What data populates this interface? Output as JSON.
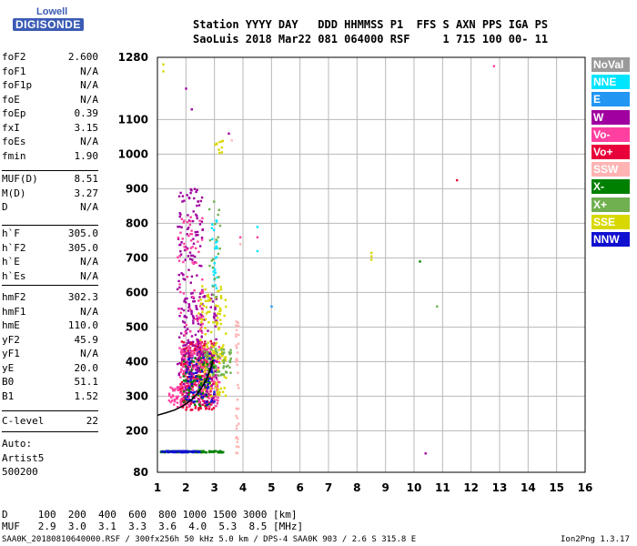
{
  "logo": {
    "line1": "Lowell",
    "line2": "DIGISONDE"
  },
  "header": {
    "line1": "Station YYYY DAY   DDD HHMMSS P1  FFS S AXN PPS IGA PS",
    "line2": "SaoLuis 2018 Mar22 081 064000 RSF     1 715 100 00- 11"
  },
  "parameters": {
    "group1": [
      {
        "name": "foF2",
        "value": "2.600"
      },
      {
        "name": "foF1",
        "value": "N/A"
      },
      {
        "name": "foF1p",
        "value": "N/A"
      },
      {
        "name": "foE",
        "value": "N/A"
      },
      {
        "name": "foEp",
        "value": "0.39"
      },
      {
        "name": "fxI",
        "value": "3.15"
      },
      {
        "name": "foEs",
        "value": "N/A"
      },
      {
        "name": "fmin",
        "value": "1.90"
      }
    ],
    "group2": [
      {
        "name": "MUF(D)",
        "value": "8.51"
      },
      {
        "name": "M(D)",
        "value": "3.27"
      },
      {
        "name": "D",
        "value": "N/A"
      }
    ],
    "group3": [
      {
        "name": "h`F",
        "value": "305.0"
      },
      {
        "name": "h`F2",
        "value": "305.0"
      },
      {
        "name": "h`E",
        "value": "N/A"
      },
      {
        "name": "h`Es",
        "value": "N/A"
      }
    ],
    "group4": [
      {
        "name": "hmF2",
        "value": "302.3"
      },
      {
        "name": "hmF1",
        "value": "N/A"
      },
      {
        "name": "hmE",
        "value": "110.0"
      },
      {
        "name": "yF2",
        "value": "45.9"
      },
      {
        "name": "yF1",
        "value": "N/A"
      },
      {
        "name": "yE",
        "value": "20.0"
      },
      {
        "name": "B0",
        "value": "51.1"
      },
      {
        "name": "B1",
        "value": "1.52"
      }
    ],
    "clevel": {
      "name": "C-level",
      "value": "22"
    },
    "auto": [
      "Auto:",
      "Artist5",
      "500200"
    ]
  },
  "legend": [
    {
      "label": "NoVal",
      "color": "#9a9a9a"
    },
    {
      "label": "NNE",
      "color": "#00e5ff"
    },
    {
      "label": "E",
      "color": "#2196f3"
    },
    {
      "label": "W",
      "color": "#a000a0"
    },
    {
      "label": "Vo-",
      "color": "#ff40a0"
    },
    {
      "label": "Vo+",
      "color": "#e8003a"
    },
    {
      "label": "SSW",
      "color": "#ffb3b3"
    },
    {
      "label": "X-",
      "color": "#008000"
    },
    {
      "label": "X+",
      "color": "#70b050"
    },
    {
      "label": "SSE",
      "color": "#d8d800"
    },
    {
      "label": "NNW",
      "color": "#1010d0"
    }
  ],
  "muf_table": {
    "row1": "D     100  200  400  600  800 1000 1500 3000 [km]",
    "row2": "MUF   2.9  3.0  3.1  3.3  3.6  4.0  5.3  8.5 [MHz]"
  },
  "footer": {
    "left": "SAA0K_20180810640000.RSF / 300fx256h 50 kHz 5.0 km / DPS-4 SAA0K 903 / 2.6 S 315.8 E",
    "right": "Ion2Png 1.3.17"
  },
  "chart_data": {
    "type": "scatter",
    "x_ticks": [
      1,
      2,
      3,
      4,
      5,
      6,
      7,
      8,
      9,
      10,
      11,
      12,
      13,
      14,
      15,
      16
    ],
    "y_ticks": [
      80,
      200,
      300,
      400,
      500,
      600,
      700,
      800,
      900,
      1000,
      1100,
      1280
    ],
    "xlim": [
      1,
      16
    ],
    "ylim": [
      80,
      1280
    ],
    "grid": true,
    "legend_position": "right",
    "trace_profile": [
      [
        1.0,
        245
      ],
      [
        1.3,
        252
      ],
      [
        1.6,
        260
      ],
      [
        1.9,
        272
      ],
      [
        2.2,
        290
      ],
      [
        2.5,
        318
      ],
      [
        2.7,
        345
      ],
      [
        2.85,
        375
      ],
      [
        2.95,
        405
      ]
    ],
    "clusters": [
      {
        "x": [
          1.4,
          2.1
        ],
        "y": [
          268,
          330
        ],
        "n": 60,
        "color": "#ff40a0"
      },
      {
        "x": [
          1.8,
          3.0
        ],
        "y": [
          260,
          460
        ],
        "n": 260,
        "color": "#e8003a"
      },
      {
        "x": [
          1.8,
          3.2
        ],
        "y": [
          270,
          450
        ],
        "n": 200,
        "color": "#ff40a0"
      },
      {
        "x": [
          1.9,
          3.1
        ],
        "y": [
          280,
          600
        ],
        "n": 150,
        "color": "#a000a0"
      },
      {
        "x": [
          2.4,
          3.4
        ],
        "y": [
          300,
          620
        ],
        "n": 140,
        "color": "#d8d800"
      },
      {
        "x": [
          2.6,
          3.6
        ],
        "y": [
          360,
          440
        ],
        "n": 60,
        "color": "#70b050"
      },
      {
        "x": [
          1.9,
          3.0
        ],
        "y": [
          270,
          420
        ],
        "n": 80,
        "color": "#008000"
      },
      {
        "x": [
          2.0,
          3.0
        ],
        "y": [
          270,
          430
        ],
        "n": 70,
        "color": "#1010d0"
      },
      {
        "x": [
          1.7,
          2.6
        ],
        "y": [
          360,
          900
        ],
        "n": 140,
        "color": "#a000a0"
      },
      {
        "x": [
          1.7,
          2.6
        ],
        "y": [
          380,
          820
        ],
        "n": 80,
        "color": "#ff40a0"
      },
      {
        "x": [
          2.9,
          3.1
        ],
        "y": [
          600,
          830
        ],
        "n": 25,
        "color": "#00e5ff"
      },
      {
        "x": [
          2.8,
          3.2
        ],
        "y": [
          560,
          870
        ],
        "n": 20,
        "color": "#70b050"
      },
      {
        "x": [
          3.0,
          3.3
        ],
        "y": [
          1000,
          1040
        ],
        "n": 10,
        "color": "#d8d800"
      },
      {
        "x": [
          1.1,
          3.3
        ],
        "y": [
          138,
          142
        ],
        "n": 140,
        "color": "#008000"
      },
      {
        "x": [
          1.1,
          2.5
        ],
        "y": [
          138,
          142
        ],
        "n": 60,
        "color": "#1010d0"
      },
      {
        "x": [
          3.75,
          3.85
        ],
        "y": [
          130,
          540
        ],
        "n": 40,
        "color": "#ffb3b3"
      }
    ],
    "points": [
      {
        "x": 1.2,
        "y": 1260,
        "color": "#d8d800"
      },
      {
        "x": 1.2,
        "y": 1240,
        "color": "#d8d800"
      },
      {
        "x": 2.2,
        "y": 1130,
        "color": "#a000a0"
      },
      {
        "x": 2.0,
        "y": 1190,
        "color": "#a000a0"
      },
      {
        "x": 3.5,
        "y": 1060,
        "color": "#a000a0"
      },
      {
        "x": 3.6,
        "y": 1040,
        "color": "#ffb3b3"
      },
      {
        "x": 4.5,
        "y": 790,
        "color": "#00e5ff"
      },
      {
        "x": 4.5,
        "y": 760,
        "color": "#ff40a0"
      },
      {
        "x": 4.5,
        "y": 720,
        "color": "#00e5ff"
      },
      {
        "x": 3.9,
        "y": 760,
        "color": "#ff40a0"
      },
      {
        "x": 3.9,
        "y": 740,
        "color": "#ffb3b3"
      },
      {
        "x": 5.0,
        "y": 560,
        "color": "#2196f3"
      },
      {
        "x": 8.5,
        "y": 715,
        "color": "#d8d800"
      },
      {
        "x": 8.5,
        "y": 705,
        "color": "#d8d800"
      },
      {
        "x": 8.5,
        "y": 695,
        "color": "#d8d800"
      },
      {
        "x": 10.2,
        "y": 690,
        "color": "#008000"
      },
      {
        "x": 10.8,
        "y": 560,
        "color": "#70b050"
      },
      {
        "x": 11.5,
        "y": 925,
        "color": "#e8003a"
      },
      {
        "x": 12.8,
        "y": 1255,
        "color": "#ff40a0"
      },
      {
        "x": 10.4,
        "y": 135,
        "color": "#a000a0"
      }
    ]
  }
}
